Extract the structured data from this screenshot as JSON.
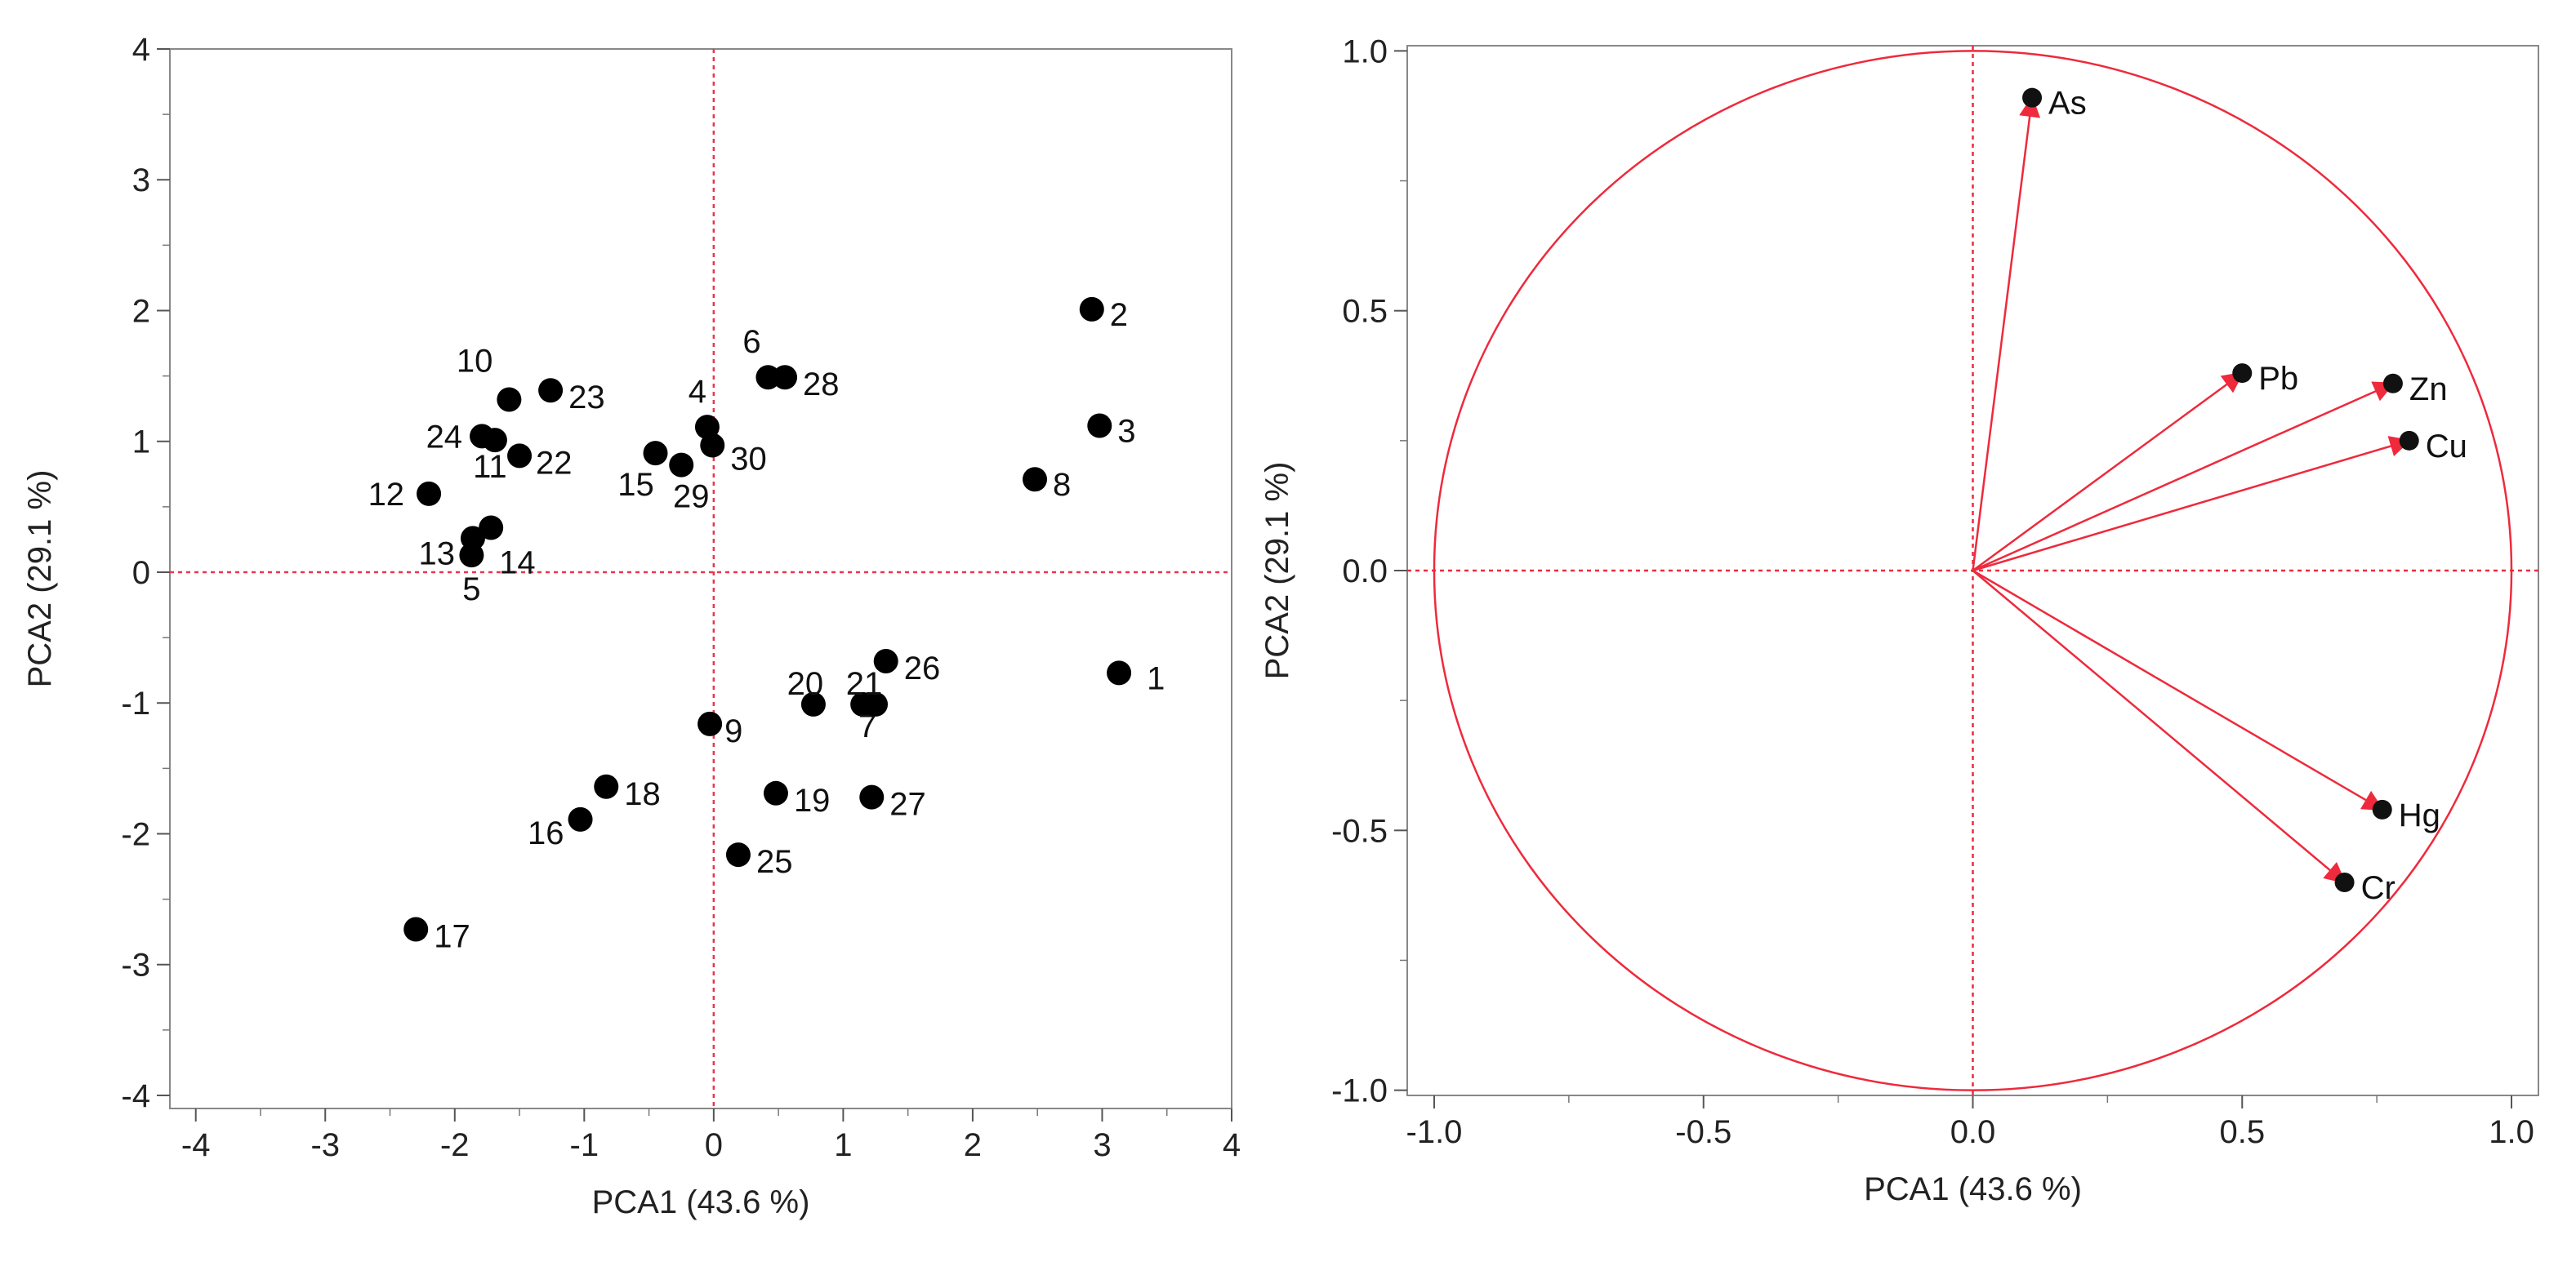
{
  "chart_data": [
    {
      "type": "scatter",
      "title": "",
      "xlabel": "PCA1  (43.6 %)",
      "ylabel": "PCA2  (29.1 %)",
      "xlim": [
        -4.2,
        4
      ],
      "ylim": [
        -4.1,
        4
      ],
      "xticks": [
        "-4",
        "-3",
        "-2",
        "-1",
        "0",
        "1",
        "2",
        "3",
        "4"
      ],
      "yticks": [
        "-4",
        "-3",
        "-2",
        "-1",
        "0",
        "1",
        "2",
        "3",
        "4"
      ],
      "reference_lines": {
        "x": 0,
        "y": 0
      },
      "point_color": "#000000",
      "refline_color": "#e8374a",
      "points": [
        {
          "label": "1",
          "x": 3.13,
          "y": -0.77
        },
        {
          "label": "2",
          "x": 2.92,
          "y": 2.01
        },
        {
          "label": "3",
          "x": 2.98,
          "y": 1.12
        },
        {
          "label": "4",
          "x": -0.05,
          "y": 1.11
        },
        {
          "label": "5",
          "x": -1.87,
          "y": 0.13
        },
        {
          "label": "6",
          "x": 0.42,
          "y": 1.49
        },
        {
          "label": "7",
          "x": 1.15,
          "y": -1.01
        },
        {
          "label": "8",
          "x": 2.48,
          "y": 0.71
        },
        {
          "label": "9",
          "x": -0.03,
          "y": -1.16
        },
        {
          "label": "10",
          "x": -1.58,
          "y": 1.32
        },
        {
          "label": "11",
          "x": -1.69,
          "y": 1.01
        },
        {
          "label": "12",
          "x": -2.2,
          "y": 0.6
        },
        {
          "label": "13",
          "x": -1.86,
          "y": 0.26
        },
        {
          "label": "14",
          "x": -1.72,
          "y": 0.34
        },
        {
          "label": "15",
          "x": -0.45,
          "y": 0.91
        },
        {
          "label": "16",
          "x": -1.03,
          "y": -1.89
        },
        {
          "label": "17",
          "x": -2.3,
          "y": -2.73
        },
        {
          "label": "18",
          "x": -0.83,
          "y": -1.64
        },
        {
          "label": "19",
          "x": 0.48,
          "y": -1.69
        },
        {
          "label": "20",
          "x": 0.77,
          "y": -1.01
        },
        {
          "label": "21",
          "x": 1.25,
          "y": -1.01
        },
        {
          "label": "22",
          "x": -1.5,
          "y": 0.89
        },
        {
          "label": "23",
          "x": -1.26,
          "y": 1.39
        },
        {
          "label": "24",
          "x": -1.79,
          "y": 1.04
        },
        {
          "label": "25",
          "x": 0.19,
          "y": -2.16
        },
        {
          "label": "26",
          "x": 1.33,
          "y": -0.68
        },
        {
          "label": "27",
          "x": 1.22,
          "y": -1.72
        },
        {
          "label": "28",
          "x": 0.55,
          "y": 1.49
        },
        {
          "label": "29",
          "x": -0.25,
          "y": 0.82
        },
        {
          "label": "30",
          "x": -0.01,
          "y": 0.97
        }
      ]
    },
    {
      "type": "scatter",
      "title": "",
      "xlabel": "PCA1  (43.6 %)",
      "ylabel": "PCA2  (29.1 %)",
      "xlim": [
        -1.05,
        1.05
      ],
      "ylim": [
        -1.01,
        1.01
      ],
      "xticks": [
        "-1.0",
        "-0.5",
        "0.0",
        "0.5",
        "1.0"
      ],
      "yticks": [
        "-1.0",
        "-0.5",
        "0.0",
        "0.5",
        "1.0"
      ],
      "reference_lines": {
        "x": 0,
        "y": 0
      },
      "unit_circle": true,
      "vector_color": "#ee2a3c",
      "loadings": [
        {
          "label": "As",
          "x": 0.11,
          "y": 0.91
        },
        {
          "label": "Pb",
          "x": 0.5,
          "y": 0.38
        },
        {
          "label": "Zn",
          "x": 0.78,
          "y": 0.36
        },
        {
          "label": "Cu",
          "x": 0.81,
          "y": 0.25
        },
        {
          "label": "Hg",
          "x": 0.76,
          "y": -0.46
        },
        {
          "label": "Cr",
          "x": 0.69,
          "y": -0.6
        }
      ]
    }
  ]
}
